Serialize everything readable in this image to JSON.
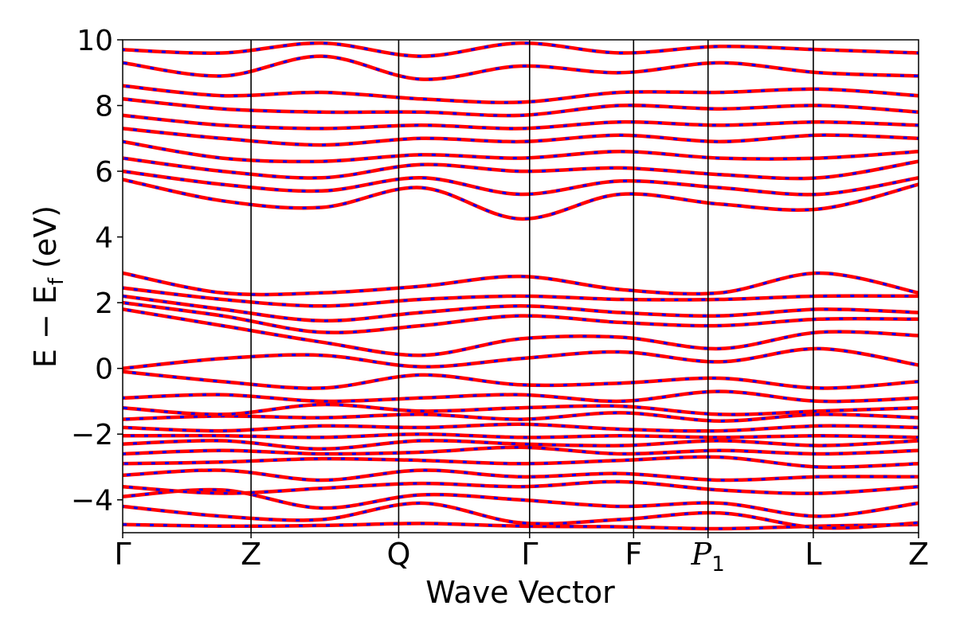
{
  "chart_data": {
    "type": "line",
    "title": "",
    "xlabel": "Wave Vector",
    "ylabel": "E − E_f (eV)",
    "ylabel_display": {
      "main": "E − E",
      "sub": "f",
      "unit": " (eV)"
    },
    "ylim": [
      -5,
      10
    ],
    "yticks": [
      -4,
      -2,
      0,
      2,
      4,
      6,
      8,
      10
    ],
    "ytick_labels": [
      "−4",
      "−2",
      "0",
      "2",
      "4",
      "6",
      "8",
      "10"
    ],
    "xlim": [
      0,
      6.2
    ],
    "grid": false,
    "legend": "none",
    "high_symmetry_points": [
      {
        "label": "Γ",
        "x": 0.0
      },
      {
        "label": "Z",
        "x": 1.0
      },
      {
        "label": "Q",
        "x": 2.15
      },
      {
        "label": "Γ",
        "x": 3.17
      },
      {
        "label": "F",
        "x": 3.98
      },
      {
        "label": "P",
        "sub": "1",
        "x": 4.56
      },
      {
        "label": "L",
        "x": 5.38
      },
      {
        "label": "Z",
        "x": 6.2
      }
    ],
    "series": [
      {
        "style": "solid",
        "color": "#ff0000",
        "bands": [
          [
            -4.75,
            -4.8,
            -4.78,
            -4.72,
            -4.8,
            -4.82,
            -4.88,
            -4.8,
            -4.75
          ],
          [
            -4.2,
            -4.5,
            -4.6,
            -4.1,
            -4.7,
            -4.6,
            -4.4,
            -4.85,
            -4.7
          ],
          [
            -3.9,
            -3.7,
            -4.25,
            -3.85,
            -4.0,
            -4.2,
            -4.1,
            -4.5,
            -4.1
          ],
          [
            -3.6,
            -3.8,
            -3.65,
            -3.5,
            -3.6,
            -3.45,
            -3.7,
            -3.8,
            -3.6
          ],
          [
            -3.25,
            -3.1,
            -3.4,
            -3.1,
            -3.3,
            -3.2,
            -3.4,
            -3.3,
            -3.3
          ],
          [
            -2.9,
            -2.85,
            -2.75,
            -2.8,
            -2.9,
            -2.8,
            -2.7,
            -3.0,
            -2.9
          ],
          [
            -2.6,
            -2.5,
            -2.6,
            -2.55,
            -2.4,
            -2.6,
            -2.5,
            -2.6,
            -2.5
          ],
          [
            -2.3,
            -2.2,
            -2.45,
            -2.2,
            -2.3,
            -2.35,
            -2.2,
            -2.35,
            -2.2
          ],
          [
            -2.05,
            -2.05,
            -2.1,
            -2.0,
            -2.1,
            -2.05,
            -2.1,
            -2.05,
            -2.1
          ],
          [
            -1.8,
            -1.9,
            -1.75,
            -1.8,
            -1.7,
            -1.85,
            -1.9,
            -1.75,
            -1.8
          ],
          [
            -1.55,
            -1.45,
            -1.5,
            -1.4,
            -1.55,
            -1.35,
            -1.6,
            -1.4,
            -1.5
          ],
          [
            -1.2,
            -1.4,
            -1.1,
            -1.3,
            -1.2,
            -1.15,
            -1.4,
            -1.3,
            -1.2
          ],
          [
            -0.9,
            -0.8,
            -1.0,
            -0.9,
            -0.8,
            -1.0,
            -0.7,
            -1.0,
            -0.9
          ],
          [
            -0.1,
            -0.4,
            -0.6,
            -0.2,
            -0.5,
            -0.45,
            -0.3,
            -0.6,
            -0.4
          ],
          [
            0.0,
            0.3,
            0.4,
            0.05,
            0.3,
            0.5,
            0.2,
            0.6,
            0.1
          ],
          [
            1.8,
            1.3,
            0.8,
            0.4,
            0.9,
            0.95,
            0.6,
            1.1,
            1.0
          ],
          [
            2.0,
            1.6,
            1.1,
            1.3,
            1.6,
            1.4,
            1.3,
            1.5,
            1.5
          ],
          [
            2.2,
            1.8,
            1.45,
            1.7,
            1.9,
            1.7,
            1.6,
            1.8,
            1.7
          ],
          [
            2.45,
            2.1,
            1.9,
            2.1,
            2.2,
            2.1,
            2.1,
            2.2,
            2.2
          ],
          [
            2.9,
            2.3,
            2.3,
            2.5,
            2.8,
            2.4,
            2.3,
            2.9,
            2.3
          ],
          [
            5.75,
            5.1,
            4.9,
            5.5,
            4.55,
            5.3,
            5.0,
            4.85,
            5.6
          ],
          [
            6.0,
            5.6,
            5.4,
            5.8,
            5.3,
            5.7,
            5.5,
            5.3,
            5.8
          ],
          [
            6.4,
            6.0,
            5.8,
            6.2,
            6.0,
            6.1,
            5.9,
            5.8,
            6.3
          ],
          [
            6.9,
            6.4,
            6.3,
            6.5,
            6.4,
            6.6,
            6.4,
            6.4,
            6.6
          ],
          [
            7.3,
            7.0,
            6.8,
            7.0,
            6.9,
            7.1,
            6.9,
            7.1,
            7.0
          ],
          [
            7.7,
            7.4,
            7.3,
            7.4,
            7.3,
            7.5,
            7.4,
            7.5,
            7.4
          ],
          [
            8.2,
            7.9,
            7.8,
            7.8,
            7.7,
            8.0,
            7.9,
            8.0,
            7.8
          ],
          [
            8.6,
            8.3,
            8.4,
            8.2,
            8.1,
            8.4,
            8.4,
            8.5,
            8.3
          ],
          [
            9.3,
            8.9,
            9.5,
            8.8,
            9.2,
            9.0,
            9.3,
            9.0,
            8.9
          ],
          [
            9.7,
            9.6,
            9.9,
            9.5,
            9.9,
            9.6,
            9.8,
            9.7,
            9.6
          ]
        ]
      }
    ],
    "band_line_colors": {
      "primary": "#ff0000",
      "secondary_dashes": "#0000ff"
    },
    "band_sample_note": "",
    "frame_color": "#000000"
  }
}
